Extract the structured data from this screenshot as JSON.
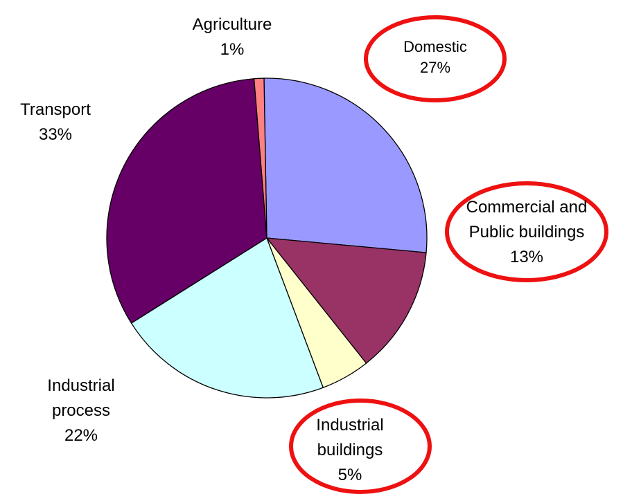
{
  "chart_data": {
    "type": "pie",
    "start_angle_deg": -1,
    "slices": [
      {
        "label": "Domestic",
        "display_lines": [
          "Domestic",
          "27%"
        ],
        "value": 27,
        "color": "#9999ff",
        "highlighted": true
      },
      {
        "label": "Commercial and Public buildings",
        "display_lines": [
          "Commercial and",
          "Public buildings",
          "13%"
        ],
        "value": 13,
        "color": "#993366",
        "highlighted": true
      },
      {
        "label": "Industrial buildings",
        "display_lines": [
          "Industrial",
          "buildings",
          "5%"
        ],
        "value": 5,
        "color": "#ffffcc",
        "highlighted": true
      },
      {
        "label": "Industrial process",
        "display_lines": [
          "Industrial",
          "process",
          "22%"
        ],
        "value": 22,
        "color": "#ccffff",
        "highlighted": false
      },
      {
        "label": "Transport",
        "display_lines": [
          "Transport",
          "33%"
        ],
        "value": 33,
        "color": "#660066",
        "highlighted": false
      },
      {
        "label": "Agriculture",
        "display_lines": [
          "Agriculture",
          "1%"
        ],
        "value": 1,
        "color": "#ff8080",
        "highlighted": false
      }
    ],
    "highlight_color": "#ee1111",
    "title": "",
    "legend": "none"
  }
}
